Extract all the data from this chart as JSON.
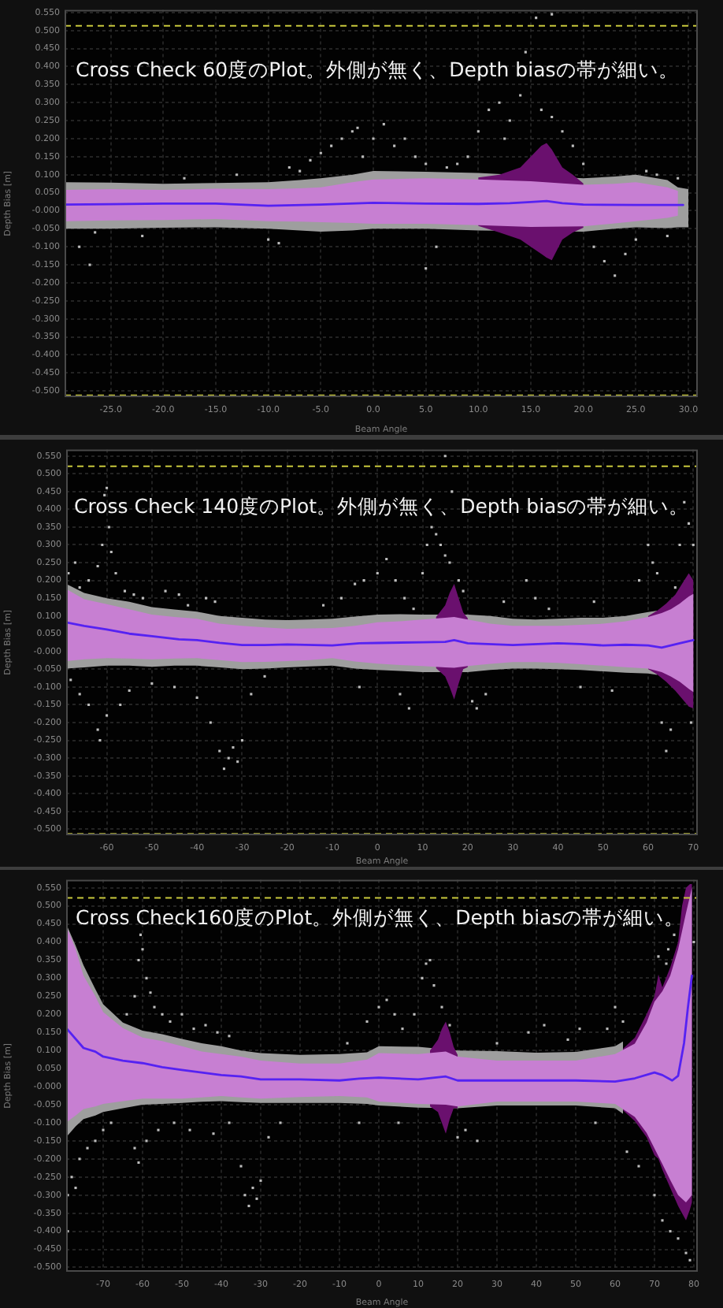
{
  "chart_data": [
    {
      "type": "scatter",
      "xlabel": "Beam Angle",
      "ylabel": "Depth Bias [m]",
      "annotations": [
        "Cross Check 60度のPlot。外側が無く、Depth biasの帯が細い。"
      ],
      "grid": true,
      "xlim": [
        -29.4,
        30.9
      ],
      "xticks": [
        {
          "value": -25,
          "label": "-25.0"
        },
        {
          "value": -20,
          "label": "-20.0"
        },
        {
          "value": -15,
          "label": "-15.0"
        },
        {
          "value": -10,
          "label": "-10.0"
        },
        {
          "value": -5,
          "label": "-5.0"
        },
        {
          "value": 0,
          "label": "0.0"
        },
        {
          "value": 5,
          "label": "5.0"
        },
        {
          "value": 10,
          "label": "10.0"
        },
        {
          "value": 15,
          "label": "15.0"
        },
        {
          "value": 20,
          "label": "20.0"
        },
        {
          "value": 25,
          "label": "25.0"
        },
        {
          "value": 30,
          "label": "30.0"
        }
      ],
      "ylim": [
        -0.517,
        0.557
      ],
      "yticks": [
        {
          "value": -0.5,
          "label": "-0.500"
        },
        {
          "value": -0.45,
          "label": "-0.450"
        },
        {
          "value": -0.4,
          "label": "-0.400"
        },
        {
          "value": -0.35,
          "label": "-0.350"
        },
        {
          "value": -0.3,
          "label": "-0.300"
        },
        {
          "value": -0.25,
          "label": "-0.250"
        },
        {
          "value": -0.2,
          "label": "-0.200"
        },
        {
          "value": -0.15,
          "label": "-0.150"
        },
        {
          "value": -0.1,
          "label": "-0.100"
        },
        {
          "value": -0.05,
          "label": "-0.050"
        },
        {
          "value": 0,
          "label": "-0.000"
        },
        {
          "value": 0.05,
          "label": "0.050"
        },
        {
          "value": 0.1,
          "label": "0.100"
        },
        {
          "value": 0.15,
          "label": "0.150"
        },
        {
          "value": 0.2,
          "label": "0.200"
        },
        {
          "value": 0.25,
          "label": "0.250"
        },
        {
          "value": 0.3,
          "label": "0.300"
        },
        {
          "value": 0.35,
          "label": "0.350"
        },
        {
          "value": 0.4,
          "label": "0.400"
        },
        {
          "value": 0.45,
          "label": "0.450"
        },
        {
          "value": 0.5,
          "label": "0.500"
        },
        {
          "value": 0.55,
          "label": "0.550"
        }
      ],
      "ref_lines": [
        {
          "axis": "y",
          "value": 0.513,
          "color": "#c8c83c",
          "line_style": "dashed"
        },
        {
          "axis": "y",
          "value": -0.512,
          "color": "#c8c83c",
          "line_style": "dashed"
        }
      ],
      "series": [
        {
          "color": "#bdbdbd",
          "marker": "square",
          "x": [
            -28,
            -27,
            -26.5,
            -22,
            -18,
            -13,
            -10,
            -9,
            -8,
            -7,
            -6,
            -5,
            -4,
            -3,
            -2,
            -1.5,
            -1,
            0,
            1,
            2,
            3,
            4,
            5,
            5,
            6,
            7,
            8,
            9,
            10,
            11,
            12,
            12.5,
            13,
            14,
            14.5,
            15.5,
            16,
            17,
            17,
            18,
            19,
            20,
            21,
            22,
            23,
            24,
            25,
            26,
            27,
            28,
            29
          ],
          "values": [
            -0.1,
            -0.15,
            -0.06,
            -0.07,
            0.09,
            0.1,
            -0.08,
            -0.09,
            0.12,
            0.11,
            0.14,
            0.16,
            0.18,
            0.2,
            0.22,
            0.23,
            0.15,
            0.2,
            0.24,
            0.18,
            0.2,
            0.15,
            0.13,
            -0.16,
            -0.1,
            0.12,
            0.13,
            0.15,
            0.22,
            0.28,
            0.3,
            0.2,
            0.25,
            0.32,
            0.44,
            0.535,
            0.28,
            0.26,
            0.545,
            0.22,
            0.18,
            0.13,
            -0.1,
            -0.14,
            -0.18,
            -0.12,
            -0.08,
            0.11,
            0.1,
            -0.07,
            0.09
          ]
        },
        {
          "type": "area",
          "color": "#9e9e9e",
          "x": [
            -29.4,
            -25,
            -20,
            -15,
            -10,
            -7,
            -5,
            -2,
            0,
            5,
            10,
            20,
            23,
            25,
            28,
            29,
            30
          ],
          "values": [
            null,
            null,
            null,
            null,
            null,
            null,
            null,
            null,
            null,
            null,
            null,
            null,
            null,
            null,
            null,
            null,
            null
          ],
          "upper": [
            0.079,
            0.078,
            0.075,
            0.077,
            0.079,
            0.085,
            0.09,
            0.1,
            0.11,
            0.108,
            0.105,
            0.09,
            0.095,
            0.1,
            0.085,
            0.065,
            0.06
          ],
          "lower": [
            -0.05,
            -0.05,
            -0.047,
            -0.046,
            -0.05,
            -0.055,
            -0.058,
            -0.055,
            -0.05,
            -0.05,
            -0.055,
            -0.058,
            -0.05,
            -0.046,
            -0.048,
            -0.046,
            -0.046
          ]
        },
        {
          "type": "area",
          "color": "#6a106e",
          "x": [
            10,
            12,
            14,
            15,
            16,
            16.5,
            17,
            18,
            19,
            20
          ],
          "values": [
            null,
            null,
            null,
            null,
            null,
            null,
            null,
            null,
            null,
            null
          ],
          "upper": [
            0.092,
            0.1,
            0.12,
            0.15,
            0.18,
            0.188,
            0.17,
            0.12,
            0.1,
            0.076
          ],
          "lower": [
            -0.042,
            -0.06,
            -0.08,
            -0.1,
            -0.12,
            -0.13,
            -0.137,
            -0.08,
            -0.06,
            -0.047
          ]
        },
        {
          "type": "area",
          "color": "#c77fd2",
          "x": [
            -29.4,
            -25,
            -20,
            -15,
            -10,
            -7,
            -5,
            -2,
            0,
            5,
            10,
            15,
            20,
            23,
            25,
            28,
            29
          ],
          "values": [
            null,
            null,
            null,
            null,
            null,
            null,
            null,
            null,
            null,
            null,
            null,
            null,
            null,
            null,
            null,
            null,
            null
          ],
          "upper": [
            0.058,
            0.06,
            0.058,
            0.061,
            0.06,
            0.062,
            0.065,
            0.079,
            0.087,
            0.09,
            0.087,
            0.082,
            0.072,
            0.075,
            0.079,
            0.065,
            0.055
          ],
          "lower": [
            -0.029,
            -0.027,
            -0.026,
            -0.023,
            -0.029,
            -0.03,
            -0.032,
            -0.034,
            -0.036,
            -0.036,
            -0.04,
            -0.045,
            -0.043,
            -0.035,
            -0.029,
            -0.02,
            -0.014
          ]
        },
        {
          "type": "line",
          "color": "#5522f2",
          "x": [
            -29.4,
            -25,
            -20,
            -15,
            -10,
            -5,
            0,
            5,
            10,
            13,
            15,
            16.5,
            18,
            20,
            25,
            29.5
          ],
          "values": [
            0.017,
            0.018,
            0.02,
            0.02,
            0.014,
            0.017,
            0.022,
            0.02,
            0.019,
            0.021,
            0.024,
            0.027,
            0.021,
            0.017,
            0.016,
            0.016
          ]
        }
      ]
    },
    {
      "type": "scatter",
      "xlabel": "Beam Angle",
      "ylabel": "Depth Bias [m]",
      "annotations": [
        "Cross Check 140度のPlot。外側が無く、Depth biasの帯が細い。"
      ],
      "grid": true,
      "xlim": [
        -69,
        71
      ],
      "xticks": [
        -60,
        -50,
        -40,
        -30,
        -20,
        -10,
        0,
        10,
        20,
        30,
        40,
        50,
        60,
        70
      ],
      "ylim": [
        -0.517,
        0.568
      ],
      "yticks": [
        {
          "value": -0.5,
          "label": "-0.500"
        },
        {
          "value": -0.45,
          "label": "-0.450"
        },
        {
          "value": -0.4,
          "label": "-0.400"
        },
        {
          "value": -0.35,
          "label": "-0.350"
        },
        {
          "value": -0.3,
          "label": "-0.300"
        },
        {
          "value": -0.25,
          "label": "-0.250"
        },
        {
          "value": -0.2,
          "label": "-0.200"
        },
        {
          "value": -0.15,
          "label": "-0.150"
        },
        {
          "value": -0.1,
          "label": "-0.100"
        },
        {
          "value": -0.05,
          "label": "-0.050"
        },
        {
          "value": 0,
          "label": "-0.000"
        },
        {
          "value": 0.05,
          "label": "0.050"
        },
        {
          "value": 0.1,
          "label": "0.100"
        },
        {
          "value": 0.15,
          "label": "0.150"
        },
        {
          "value": 0.2,
          "label": "0.200"
        },
        {
          "value": 0.25,
          "label": "0.250"
        },
        {
          "value": 0.3,
          "label": "0.300"
        },
        {
          "value": 0.35,
          "label": "0.350"
        },
        {
          "value": 0.4,
          "label": "0.400"
        },
        {
          "value": 0.45,
          "label": "0.450"
        },
        {
          "value": 0.5,
          "label": "0.500"
        },
        {
          "value": 0.55,
          "label": "0.550"
        }
      ],
      "ref_lines": [
        {
          "axis": "y",
          "value": 0.521,
          "color": "#c8c83c",
          "line_style": "dashed"
        },
        {
          "axis": "y",
          "value": -0.513,
          "color": "#c8c83c",
          "line_style": "dashed"
        }
      ],
      "series": [
        {
          "color": "#bdbdbd",
          "marker": "square",
          "x": [
            -68.5,
            -67,
            -66,
            -64,
            -62,
            -61,
            -60.5,
            -60,
            -59.5,
            -59,
            -58,
            -56,
            -54,
            -52,
            -47,
            -44,
            -42,
            -38,
            -36,
            -68,
            -66,
            -64,
            -62,
            -61.5,
            -60,
            -57,
            -55,
            -50,
            -45,
            -40,
            -37,
            -35,
            -34,
            -33,
            -32,
            -31,
            -30,
            -28,
            -25,
            -12,
            -8,
            -5,
            -3,
            0,
            2,
            4,
            6,
            8,
            10,
            11,
            12,
            13,
            14,
            15,
            16,
            18,
            19,
            -4,
            5,
            7,
            21,
            22,
            24,
            28,
            33,
            35,
            38,
            45,
            48,
            52,
            58,
            60,
            61,
            62,
            63,
            64,
            65,
            66,
            67,
            68,
            69,
            69.5,
            70,
            15,
            16.5
          ],
          "values": [
            0.22,
            0.25,
            0.18,
            0.2,
            0.24,
            0.3,
            0.44,
            0.46,
            0.35,
            0.28,
            0.22,
            0.17,
            0.16,
            0.15,
            0.17,
            0.16,
            0.13,
            0.15,
            0.14,
            -0.08,
            -0.12,
            -0.15,
            -0.22,
            -0.25,
            -0.18,
            -0.15,
            -0.11,
            -0.09,
            -0.1,
            -0.13,
            -0.2,
            -0.28,
            -0.33,
            -0.3,
            -0.27,
            -0.31,
            -0.25,
            -0.12,
            -0.07,
            0.13,
            0.15,
            0.19,
            0.2,
            0.22,
            0.26,
            0.2,
            0.15,
            0.12,
            0.22,
            0.3,
            0.35,
            0.33,
            0.3,
            0.27,
            0.25,
            0.2,
            0.17,
            -0.1,
            -0.12,
            -0.16,
            -0.14,
            -0.16,
            -0.12,
            0.14,
            0.2,
            0.15,
            0.12,
            -0.1,
            0.14,
            -0.11,
            0.2,
            0.3,
            0.25,
            0.22,
            -0.2,
            -0.28,
            -0.22,
            0.18,
            0.3,
            0.42,
            0.36,
            -0.2,
            0.3,
            0.55,
            0.45
          ]
        },
        {
          "type": "area",
          "color": "#9e9e9e",
          "x": [
            -69,
            -65,
            -60,
            -55,
            -50,
            -45,
            -40,
            -35,
            -30,
            -25,
            -20,
            -15,
            -10,
            -5,
            0,
            5,
            10,
            20,
            25,
            30,
            35,
            40,
            45,
            50,
            55,
            60,
            62
          ],
          "values": [
            null,
            null,
            null,
            null,
            null,
            null,
            null,
            null,
            null,
            null,
            null,
            null,
            null,
            null,
            null,
            null,
            null,
            null,
            null,
            null,
            null,
            null,
            null,
            null,
            null,
            null,
            null
          ],
          "upper": [
            0.19,
            0.165,
            0.15,
            0.14,
            0.125,
            0.118,
            0.112,
            0.1,
            0.095,
            0.09,
            0.088,
            0.09,
            0.092,
            0.098,
            0.104,
            0.105,
            0.104,
            0.104,
            0.1,
            0.092,
            0.09,
            0.092,
            0.095,
            0.095,
            0.1,
            0.111,
            0.115
          ],
          "lower": [
            -0.048,
            -0.045,
            -0.04,
            -0.04,
            -0.043,
            -0.04,
            -0.04,
            -0.045,
            -0.05,
            -0.048,
            -0.045,
            -0.042,
            -0.04,
            -0.048,
            -0.052,
            -0.055,
            -0.058,
            -0.058,
            -0.052,
            -0.048,
            -0.048,
            -0.05,
            -0.052,
            -0.056,
            -0.06,
            -0.062,
            -0.066
          ]
        },
        {
          "type": "area",
          "color": "#6a106e",
          "x": [
            13,
            15,
            16,
            17,
            18,
            19,
            20
          ],
          "values": [
            null,
            null,
            null,
            null,
            null,
            null,
            null
          ],
          "upper": [
            0.097,
            0.13,
            0.165,
            0.19,
            0.15,
            0.11,
            0.094
          ],
          "lower": [
            -0.047,
            -0.07,
            -0.1,
            -0.135,
            -0.09,
            -0.05,
            -0.044
          ]
        },
        {
          "type": "area",
          "color": "#6a106e",
          "x": [
            60,
            62,
            64,
            66,
            68,
            69,
            70
          ],
          "values": [
            null,
            null,
            null,
            null,
            null,
            null,
            null
          ],
          "upper": [
            0.1,
            0.115,
            0.135,
            0.16,
            0.2,
            0.22,
            0.2
          ],
          "lower": [
            -0.05,
            -0.065,
            -0.085,
            -0.11,
            -0.14,
            -0.155,
            -0.16
          ]
        },
        {
          "type": "area",
          "color": "#c77fd2",
          "x": [
            -69,
            -65,
            -60,
            -55,
            -50,
            -45,
            -40,
            -35,
            -30,
            -25,
            -20,
            -15,
            -10,
            -5,
            0,
            5,
            10,
            15,
            17,
            20,
            25,
            30,
            35,
            40,
            45,
            50,
            55,
            60,
            63,
            65,
            67,
            69,
            70
          ],
          "values": [
            null,
            null,
            null,
            null,
            null,
            null,
            null,
            null,
            null,
            null,
            null,
            null,
            null,
            null,
            null,
            null,
            null,
            null,
            null,
            null,
            null,
            null,
            null,
            null,
            null,
            null,
            null,
            null,
            null,
            null,
            null,
            null,
            null
          ],
          "upper": [
            0.176,
            0.147,
            0.133,
            0.119,
            0.104,
            0.097,
            0.092,
            0.078,
            0.072,
            0.068,
            0.064,
            0.065,
            0.066,
            0.072,
            0.082,
            0.085,
            0.09,
            0.095,
            0.097,
            0.09,
            0.078,
            0.072,
            0.072,
            0.072,
            0.075,
            0.078,
            0.085,
            0.097,
            0.108,
            0.119,
            0.135,
            0.155,
            0.162
          ],
          "lower": [
            -0.027,
            -0.022,
            -0.019,
            -0.02,
            -0.022,
            -0.02,
            -0.019,
            -0.024,
            -0.03,
            -0.029,
            -0.027,
            -0.024,
            -0.019,
            -0.028,
            -0.034,
            -0.038,
            -0.041,
            -0.045,
            -0.046,
            -0.041,
            -0.035,
            -0.03,
            -0.03,
            -0.032,
            -0.036,
            -0.04,
            -0.044,
            -0.048,
            -0.058,
            -0.07,
            -0.085,
            -0.105,
            -0.114
          ]
        },
        {
          "type": "line",
          "color": "#5522f2",
          "x": [
            -69,
            -65,
            -60,
            -55,
            -50,
            -44,
            -40,
            -35,
            -30,
            -25,
            -20,
            -14,
            -10,
            -4,
            0,
            10,
            15,
            17,
            20,
            30,
            40,
            45,
            50,
            55,
            60,
            63,
            67,
            70
          ],
          "values": [
            0.082,
            0.072,
            0.062,
            0.05,
            0.043,
            0.034,
            0.032,
            0.024,
            0.018,
            0.018,
            0.02,
            0.018,
            0.017,
            0.023,
            0.024,
            0.026,
            0.027,
            0.032,
            0.023,
            0.018,
            0.023,
            0.021,
            0.017,
            0.019,
            0.017,
            0.011,
            0.023,
            0.032
          ]
        }
      ]
    },
    {
      "type": "scatter",
      "xlabel": "Beam Angle",
      "ylabel": "Depth Bias [m]",
      "annotations": [
        "Cross Check160度のPlot。外側が無く、Depth biasの帯が細い。"
      ],
      "grid": true,
      "xlim": [
        -79.4,
        81
      ],
      "xticks": [
        -70,
        -60,
        -50,
        -40,
        -30,
        -20,
        -10,
        0,
        10,
        20,
        30,
        40,
        50,
        60,
        70,
        80
      ],
      "ylim": [
        -0.512,
        0.572
      ],
      "yticks": [
        {
          "value": -0.5,
          "label": "-0.500"
        },
        {
          "value": -0.45,
          "label": "-0.450"
        },
        {
          "value": -0.4,
          "label": "-0.400"
        },
        {
          "value": -0.35,
          "label": "-0.350"
        },
        {
          "value": -0.3,
          "label": "-0.300"
        },
        {
          "value": -0.25,
          "label": "-0.250"
        },
        {
          "value": -0.2,
          "label": "-0.200"
        },
        {
          "value": -0.15,
          "label": "-0.150"
        },
        {
          "value": -0.1,
          "label": "-0.100"
        },
        {
          "value": -0.05,
          "label": "-0.050"
        },
        {
          "value": 0,
          "label": "-0.000"
        },
        {
          "value": 0.05,
          "label": "0.050"
        },
        {
          "value": 0.1,
          "label": "0.100"
        },
        {
          "value": 0.15,
          "label": "0.150"
        },
        {
          "value": 0.2,
          "label": "0.200"
        },
        {
          "value": 0.25,
          "label": "0.250"
        },
        {
          "value": 0.3,
          "label": "0.300"
        },
        {
          "value": 0.35,
          "label": "0.350"
        },
        {
          "value": 0.4,
          "label": "0.400"
        },
        {
          "value": 0.45,
          "label": "0.450"
        },
        {
          "value": 0.5,
          "label": "0.500"
        },
        {
          "value": 0.55,
          "label": "0.550"
        }
      ],
      "ref_lines": [
        {
          "axis": "y",
          "value": 0.522,
          "color": "#c8c83c",
          "line_style": "dashed"
        }
      ],
      "series": [
        {
          "color": "#bdbdbd",
          "marker": "square",
          "x": [
            -79,
            -79,
            -78,
            -77,
            -76,
            -74,
            -72,
            -70,
            -68,
            -64,
            -62,
            -61,
            -60.5,
            -60,
            -59,
            -58,
            -57,
            -55,
            -53,
            -50,
            -47,
            -44,
            -41,
            -38,
            -62,
            -61,
            -59,
            -56,
            -52,
            -48,
            -42,
            -38,
            -35,
            -34,
            -33,
            -32,
            -31,
            -30,
            -28,
            -25,
            -8,
            -3,
            0,
            2,
            4,
            6,
            9,
            11,
            12,
            13,
            14,
            16,
            18,
            -5,
            5,
            20,
            22,
            25,
            30,
            38,
            42,
            48,
            51,
            55,
            58,
            60,
            62,
            63,
            66,
            70,
            72,
            74,
            76,
            78,
            79,
            71,
            73,
            73.5,
            75,
            80
          ],
          "values": [
            -0.4,
            -0.3,
            -0.25,
            -0.28,
            -0.2,
            -0.17,
            -0.15,
            -0.12,
            -0.1,
            0.2,
            0.25,
            0.35,
            0.42,
            0.38,
            0.3,
            0.26,
            0.22,
            0.2,
            0.18,
            0.2,
            0.16,
            0.17,
            0.15,
            0.14,
            -0.17,
            -0.21,
            -0.15,
            -0.12,
            -0.1,
            -0.12,
            -0.13,
            -0.1,
            -0.22,
            -0.3,
            -0.33,
            -0.28,
            -0.31,
            -0.26,
            -0.14,
            -0.1,
            0.12,
            0.18,
            0.22,
            0.24,
            0.2,
            0.16,
            0.2,
            0.3,
            0.34,
            0.35,
            0.28,
            0.22,
            0.17,
            -0.1,
            -0.1,
            -0.14,
            -0.12,
            -0.15,
            0.12,
            0.15,
            0.17,
            0.13,
            0.16,
            -0.1,
            0.16,
            0.22,
            0.18,
            -0.18,
            -0.22,
            -0.3,
            -0.37,
            -0.4,
            -0.42,
            -0.46,
            -0.48,
            0.36,
            0.34,
            0.38,
            0.42,
            0.4
          ]
        },
        {
          "type": "area",
          "color": "#9e9e9e",
          "x": [
            -79.4,
            -77,
            -75,
            -72,
            -70,
            -65,
            -60,
            -55,
            -50,
            -45,
            -40,
            -35,
            -30,
            -20,
            -10,
            -3,
            0,
            10,
            20,
            30,
            40,
            50,
            60,
            62
          ],
          "values": [
            null,
            null,
            null,
            null,
            null,
            null,
            null,
            null,
            null,
            null,
            null,
            null,
            null,
            null,
            null,
            null,
            null,
            null,
            null,
            null,
            null,
            null,
            null,
            null
          ],
          "upper": [
            0.45,
            0.39,
            0.336,
            0.27,
            0.228,
            0.177,
            0.155,
            0.145,
            0.132,
            0.12,
            0.112,
            0.1,
            0.093,
            0.088,
            0.09,
            0.095,
            0.112,
            0.11,
            0.1,
            0.098,
            0.094,
            0.096,
            0.112,
            0.125
          ],
          "lower": [
            -0.14,
            -0.11,
            -0.09,
            -0.08,
            -0.07,
            -0.06,
            -0.05,
            -0.048,
            -0.045,
            -0.042,
            -0.04,
            -0.043,
            -0.045,
            -0.045,
            -0.045,
            -0.048,
            -0.052,
            -0.058,
            -0.06,
            -0.052,
            -0.052,
            -0.052,
            -0.06,
            -0.075
          ]
        },
        {
          "type": "area",
          "color": "#6a106e",
          "x": [
            13,
            15,
            16,
            17,
            18,
            19,
            20
          ],
          "values": [
            null,
            null,
            null,
            null,
            null,
            null,
            null
          ],
          "upper": [
            0.1,
            0.13,
            0.16,
            0.18,
            0.15,
            0.11,
            0.088
          ],
          "lower": [
            -0.055,
            -0.07,
            -0.1,
            -0.13,
            -0.09,
            -0.06,
            -0.06
          ]
        },
        {
          "type": "area",
          "color": "#6a106e",
          "x": [
            62,
            65,
            68,
            70,
            71,
            72,
            74,
            76,
            77,
            78,
            79,
            79.5
          ],
          "values": [
            null,
            null,
            null,
            null,
            null,
            null,
            null,
            null,
            null,
            null,
            null,
            null
          ],
          "upper": [
            0.105,
            0.135,
            0.2,
            0.25,
            0.31,
            0.275,
            0.33,
            0.4,
            0.5,
            0.55,
            0.56,
            0.56
          ],
          "lower": [
            -0.065,
            -0.095,
            -0.14,
            -0.19,
            -0.2,
            -0.23,
            -0.28,
            -0.33,
            -0.35,
            -0.37,
            -0.34,
            -0.32
          ]
        },
        {
          "type": "area",
          "color": "#c77fd2",
          "x": [
            -79.4,
            -77,
            -75,
            -72,
            -70,
            -65,
            -60,
            -55,
            -50,
            -45,
            -40,
            -35,
            -30,
            -20,
            -10,
            -3,
            0,
            10,
            17,
            20,
            30,
            40,
            50,
            60,
            65,
            68,
            70,
            72,
            74,
            76,
            78,
            79.5
          ],
          "values": [
            null,
            null,
            null,
            null,
            null,
            null,
            null,
            null,
            null,
            null,
            null,
            null,
            null,
            null,
            null,
            null,
            null,
            null,
            null,
            null,
            null,
            null,
            null,
            null,
            null,
            null,
            null,
            null,
            null,
            null,
            null,
            null
          ],
          "upper": [
            0.445,
            0.38,
            0.307,
            0.25,
            0.206,
            0.162,
            0.136,
            0.126,
            0.112,
            0.097,
            0.09,
            0.083,
            0.072,
            0.064,
            0.064,
            0.075,
            0.093,
            0.09,
            0.097,
            0.083,
            0.072,
            0.072,
            0.072,
            0.09,
            0.119,
            0.177,
            0.235,
            0.264,
            0.307,
            0.38,
            0.48,
            0.55
          ],
          "lower": [
            -0.099,
            -0.08,
            -0.062,
            -0.055,
            -0.048,
            -0.04,
            -0.033,
            -0.033,
            -0.033,
            -0.03,
            -0.026,
            -0.03,
            -0.033,
            -0.029,
            -0.026,
            -0.03,
            -0.041,
            -0.048,
            -0.05,
            -0.055,
            -0.041,
            -0.041,
            -0.041,
            -0.048,
            -0.084,
            -0.128,
            -0.171,
            -0.214,
            -0.258,
            -0.3,
            -0.32,
            -0.3
          ]
        },
        {
          "type": "line",
          "color": "#5522f2",
          "x": [
            -79.4,
            -75,
            -72,
            -70,
            -65,
            -60,
            -55,
            -50,
            -45,
            -40,
            -35,
            -30,
            -20,
            -10,
            -5,
            0,
            10,
            17,
            20,
            30,
            40,
            50,
            60,
            65,
            70,
            72,
            74.5,
            76,
            77.5,
            78.5,
            79.5
          ],
          "values": [
            0.162,
            0.107,
            0.097,
            0.083,
            0.072,
            0.065,
            0.054,
            0.046,
            0.039,
            0.032,
            0.028,
            0.02,
            0.02,
            0.017,
            0.022,
            0.025,
            0.02,
            0.028,
            0.017,
            0.017,
            0.017,
            0.017,
            0.014,
            0.023,
            0.039,
            0.032,
            0.017,
            0.03,
            0.12,
            0.22,
            0.307
          ]
        }
      ]
    }
  ]
}
